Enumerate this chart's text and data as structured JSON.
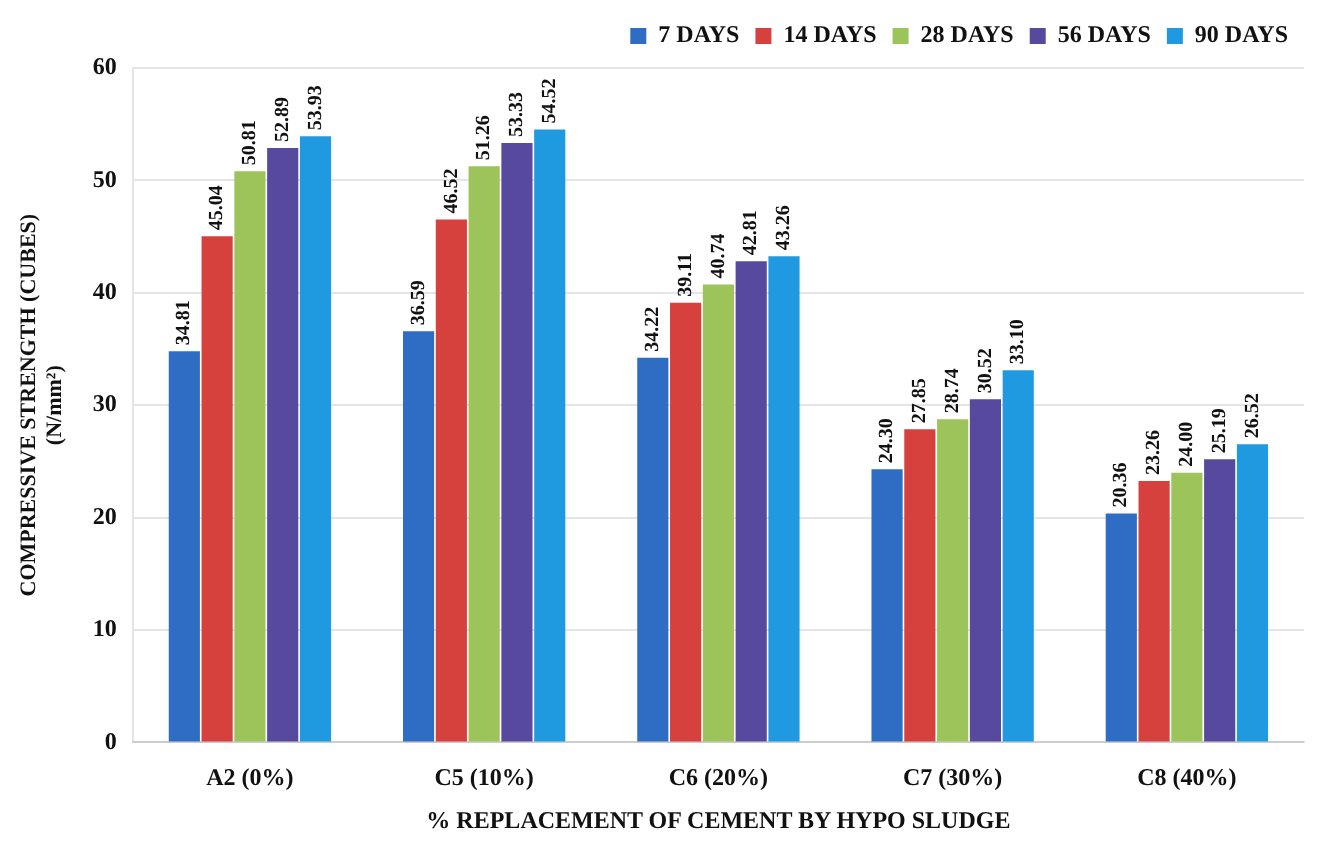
{
  "chart_data": {
    "type": "bar",
    "xlabel": "% REPLACEMENT OF CEMENT BY HYPO SLUDGE",
    "ylabel": "COMPRESSIVE STRENGTH (CUBES)\n(N/mm²)",
    "categories": [
      "A2 (0%)",
      "C5 (10%)",
      "C6 (20%)",
      "C7 (30%)",
      "C8 (40%)"
    ],
    "series": [
      {
        "name": "7 DAYS",
        "color": "#2f6cc4",
        "values": [
          34.81,
          36.59,
          34.22,
          24.3,
          20.36
        ],
        "value_labels": [
          "34.81",
          "36.59",
          "34.22",
          "24.30",
          "20.36"
        ]
      },
      {
        "name": "14 DAYS",
        "color": "#d6413e",
        "values": [
          45.04,
          46.52,
          39.11,
          27.85,
          23.26
        ],
        "value_labels": [
          "45.04",
          "46.52",
          "39.11",
          "27.85",
          "23.26"
        ]
      },
      {
        "name": "28 DAYS",
        "color": "#9cc45a",
        "values": [
          50.81,
          51.26,
          40.74,
          28.74,
          24.0
        ],
        "value_labels": [
          "50.81",
          "51.26",
          "40.74",
          "28.74",
          "24.00"
        ]
      },
      {
        "name": "56 DAYS",
        "color": "#574a9e",
        "values": [
          52.89,
          53.33,
          42.81,
          30.52,
          25.19
        ],
        "value_labels": [
          "52.89",
          "53.33",
          "42.81",
          "30.52",
          "25.19"
        ]
      },
      {
        "name": "90 DAYS",
        "color": "#1f9ae0",
        "values": [
          53.93,
          54.52,
          43.26,
          33.1,
          26.52
        ],
        "value_labels": [
          "53.93",
          "54.52",
          "43.26",
          "33.10",
          "26.52"
        ]
      }
    ],
    "ylim": [
      0,
      60
    ],
    "yticks": [
      0,
      10,
      20,
      30,
      40,
      50,
      60
    ],
    "grid": "y",
    "legend": "top right"
  }
}
